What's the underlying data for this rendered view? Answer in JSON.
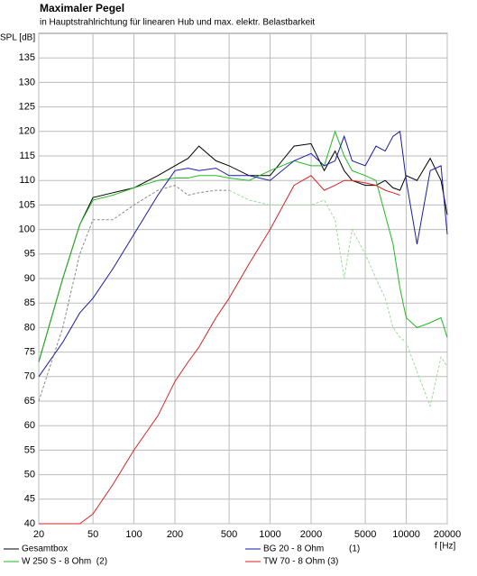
{
  "chart_data": {
    "type": "line",
    "title": "Maximaler Pegel",
    "subtitle": "in Hauptstrahlrichtung für linearen Hub und max. elektr. Belastbarkeit",
    "x_label": "f [Hz]",
    "y_label": "SPL [dB]",
    "log_x": true,
    "grid": true,
    "legend": "bottom",
    "x": [
      20,
      30,
      40,
      50,
      70,
      100,
      150,
      200,
      250,
      300,
      400,
      500,
      700,
      1000,
      1500,
      2000,
      2500,
      3000,
      3500,
      4000,
      5000,
      6000,
      7000,
      8000,
      9000,
      10000,
      12000,
      15000,
      18000,
      20000
    ],
    "series": [
      {
        "name": "Gesamtbox",
        "color": "#000000",
        "values": [
          73,
          90,
          101,
          106.5,
          107.5,
          108.5,
          111,
          113,
          114.5,
          117,
          114,
          113,
          111,
          111,
          117,
          117.5,
          112,
          116,
          112,
          110,
          109,
          109,
          110,
          108.5,
          108,
          111,
          110,
          114.5,
          110,
          103
        ]
      },
      {
        "name": "W 250 S - 8 Ohm  (2)",
        "color": "#22bb22",
        "values": [
          73,
          90,
          101,
          106,
          107,
          108.5,
          110,
          110.5,
          110.5,
          111,
          111,
          110.5,
          110,
          112,
          114,
          113,
          113,
          120,
          115,
          112,
          111,
          110,
          103,
          97,
          88,
          82,
          80,
          81,
          82,
          78
        ]
      },
      {
        "name": "BG 20 - 8 Ohm          (1)",
        "color": "#1a1aaa",
        "values": [
          70,
          77,
          83,
          86,
          92,
          99,
          107,
          112,
          112.5,
          112,
          112.5,
          111,
          111,
          110,
          114,
          115.5,
          113,
          114,
          119,
          114,
          113,
          117,
          116,
          119,
          120,
          110,
          97,
          112,
          113,
          99
        ]
      },
      {
        "name": "TW 70 - 8 Ohm (3)",
        "color": "#dd2222",
        "values": [
          40,
          40,
          40,
          42,
          48,
          55,
          62,
          69,
          73,
          76,
          82,
          86,
          93,
          100,
          109,
          111,
          108,
          109,
          110,
          110,
          109.5,
          109,
          108,
          107.5,
          107,
          null,
          null,
          null,
          null,
          null
        ]
      },
      {
        "color": "#888888",
        "dash": true,
        "values": [
          65,
          80,
          95,
          102,
          102,
          105,
          108,
          109,
          107,
          107.5,
          108,
          108,
          null,
          null,
          null,
          null,
          null,
          null,
          null,
          null,
          null,
          null,
          null,
          null,
          null,
          null,
          null,
          null,
          null,
          null
        ]
      },
      {
        "color": "#99dd99",
        "dash": true,
        "values": [
          null,
          null,
          null,
          null,
          null,
          null,
          null,
          null,
          null,
          null,
          null,
          108,
          106,
          105,
          105,
          105,
          106,
          102,
          90,
          100,
          95,
          90,
          86,
          80,
          78,
          77,
          71,
          64,
          74,
          72
        ]
      }
    ],
    "xlim": [
      20,
      20000
    ],
    "xticks": [
      20,
      50,
      100,
      200,
      500,
      1000,
      2000,
      5000,
      10000,
      20000
    ],
    "ylim": [
      40,
      140
    ],
    "yticks": [
      40,
      45,
      50,
      55,
      60,
      65,
      70,
      75,
      80,
      85,
      90,
      95,
      100,
      105,
      110,
      115,
      120,
      125,
      130,
      135
    ]
  }
}
